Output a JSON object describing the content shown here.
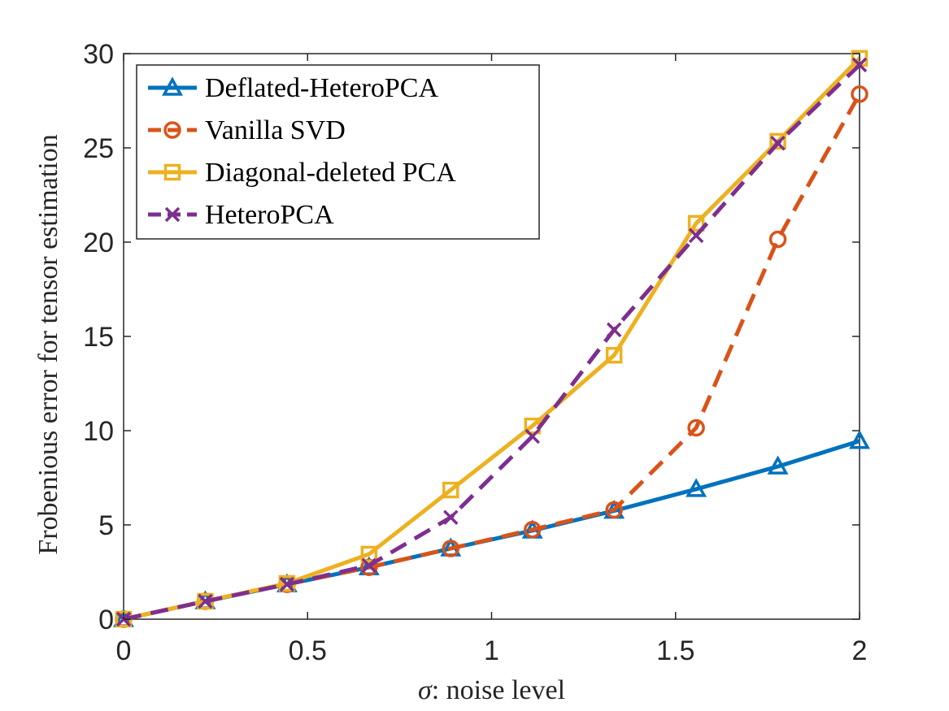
{
  "chart_data": {
    "type": "line",
    "title": "",
    "xlabel_symbol": "σ",
    "xlabel_rest": ": noise level",
    "ylabel": "Frobenious error for tensor estimation",
    "xlim": [
      0,
      2
    ],
    "ylim": [
      0,
      30
    ],
    "xticks": [
      0,
      0.5,
      1,
      1.5,
      2
    ],
    "xtick_labels": [
      "0",
      "0.5",
      "1",
      "1.5",
      "2"
    ],
    "yticks": [
      0,
      5,
      10,
      15,
      20,
      25,
      30
    ],
    "ytick_labels": [
      "0",
      "5",
      "10",
      "15",
      "20",
      "25",
      "30"
    ],
    "grid": false,
    "legend_position": "top-left",
    "x": [
      0,
      0.222,
      0.444,
      0.667,
      0.889,
      1.111,
      1.333,
      1.556,
      1.778,
      2.0
    ],
    "series": [
      {
        "name": "Deflated-HeteroPCA",
        "color": "#0072BD",
        "dash": "solid",
        "marker": "triangle",
        "values": [
          0,
          0.95,
          1.85,
          2.75,
          3.75,
          4.7,
          5.75,
          6.9,
          8.1,
          9.45
        ]
      },
      {
        "name": "Vanilla SVD",
        "color": "#D95319",
        "dash": "dashed",
        "marker": "circle",
        "values": [
          0,
          0.95,
          1.85,
          2.75,
          3.75,
          4.75,
          5.8,
          10.15,
          20.15,
          27.85
        ]
      },
      {
        "name": "Diagonal-deleted PCA",
        "color": "#EDB120",
        "dash": "solid",
        "marker": "square",
        "values": [
          0,
          0.95,
          1.9,
          3.45,
          6.85,
          10.25,
          14.0,
          21.0,
          25.35,
          29.75
        ]
      },
      {
        "name": "HeteroPCA",
        "color": "#7E2F8E",
        "dash": "dashed",
        "marker": "x",
        "values": [
          0,
          0.95,
          1.85,
          2.85,
          5.4,
          9.7,
          15.35,
          20.35,
          25.25,
          29.4
        ]
      }
    ]
  }
}
